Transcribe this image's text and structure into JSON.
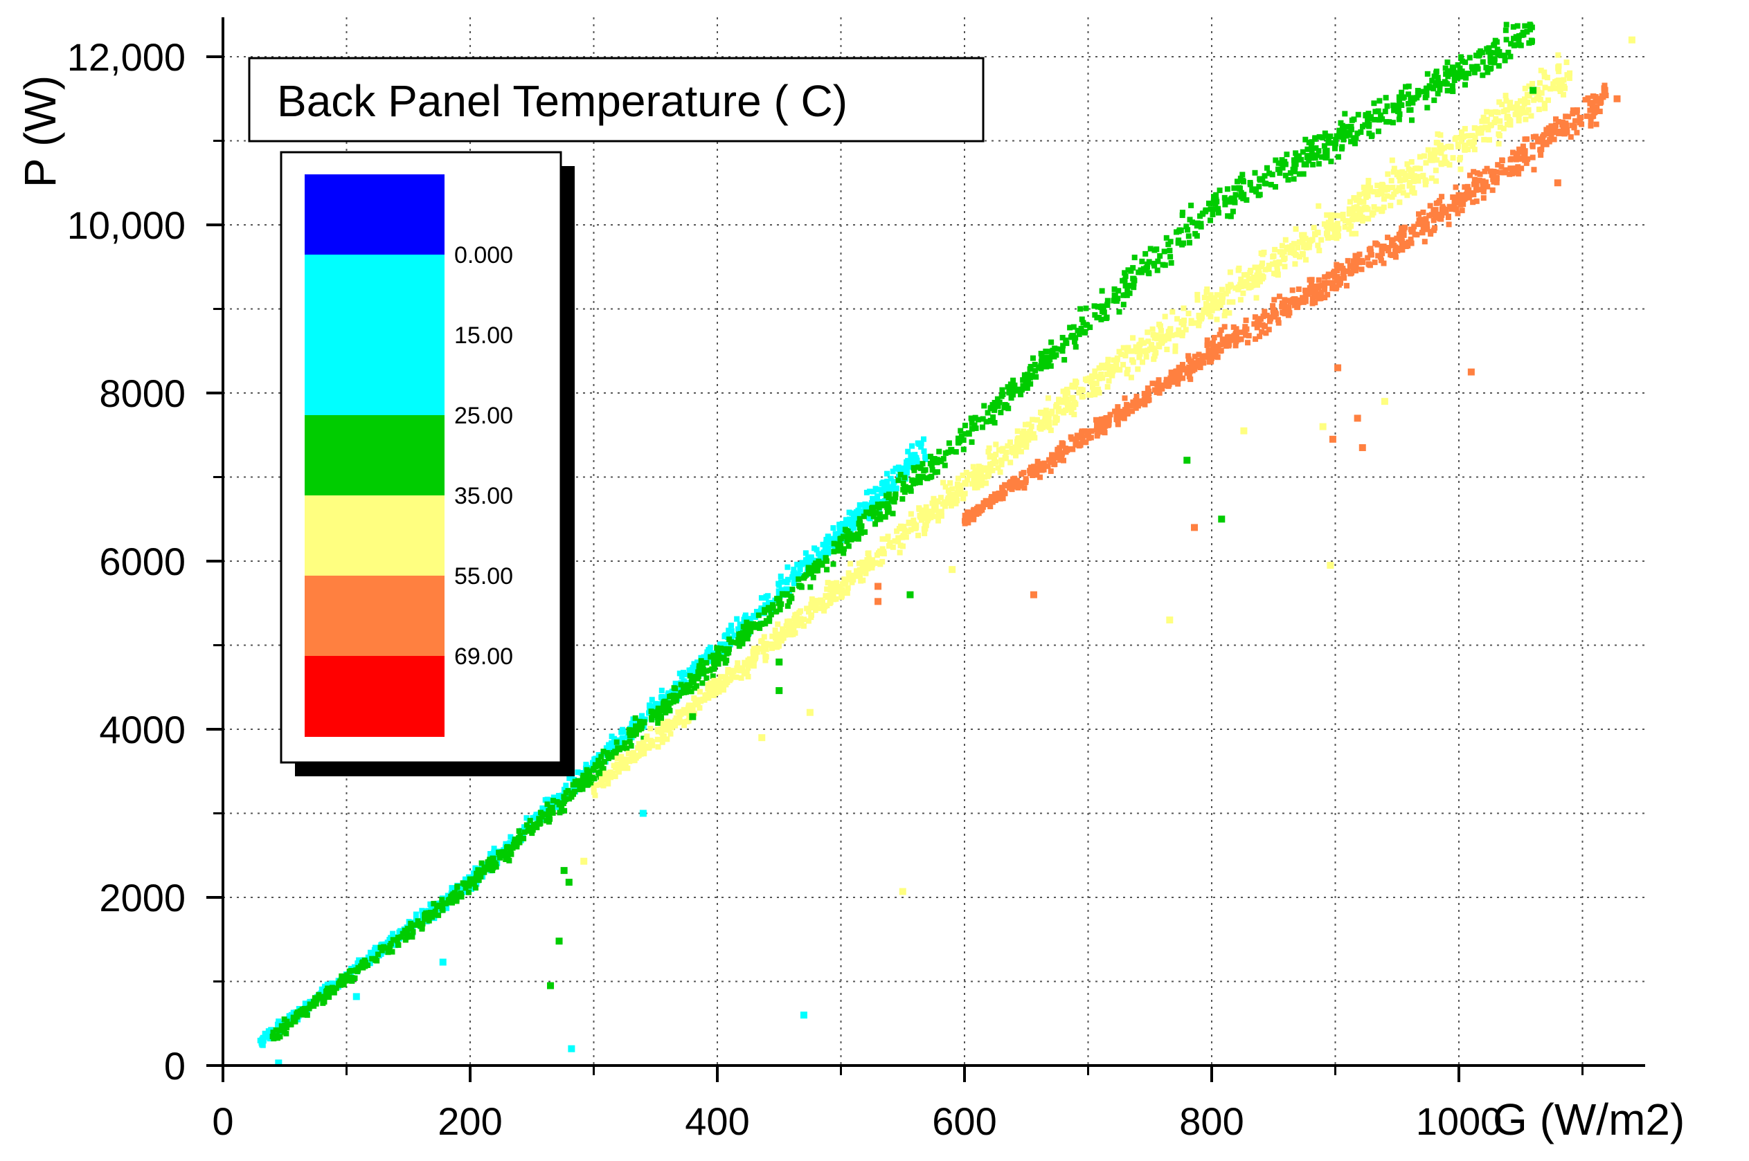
{
  "chart_data": {
    "type": "scatter",
    "title": "Back Panel Temperature ( C)",
    "xlabel": "G (W/m2)",
    "ylabel": "P (W)",
    "xlim": [
      0,
      1150
    ],
    "ylim": [
      0,
      12000
    ],
    "x_ticks": [
      0,
      200,
      400,
      600,
      800,
      1000
    ],
    "x_tick_labels": [
      "0",
      "200",
      "400",
      "600",
      "800",
      "1000"
    ],
    "y_ticks": [
      0,
      2000,
      4000,
      6000,
      8000,
      10000,
      12000
    ],
    "y_tick_labels": [
      "0",
      "2000",
      "4000",
      "6000",
      "8000",
      "10,000",
      "12,000"
    ],
    "grid": true,
    "legend_placement": "top-left",
    "color_scale": {
      "bands": [
        {
          "color": "#0000ff"
        },
        {
          "color": "#00ffff"
        },
        {
          "color": "#00ffff"
        },
        {
          "color": "#00cc00"
        },
        {
          "color": "#ffff80"
        },
        {
          "color": "#ff8040"
        },
        {
          "color": "#ff0000"
        }
      ],
      "labels": [
        "0.000",
        "15.00",
        "25.00",
        "35.00",
        "55.00",
        "69.00"
      ]
    },
    "series": [
      {
        "name": "0.000–15.00 (cyan)",
        "color": "#00ffff",
        "x_range": [
          30,
          570
        ],
        "trend": [
          [
            30,
            280
          ],
          [
            200,
            2180
          ],
          [
            400,
            4950
          ],
          [
            570,
            7350
          ]
        ],
        "spread": 200,
        "count": 900
      },
      {
        "name": "25.00–35.00 (green)",
        "color": "#00cc00",
        "x_range": [
          40,
          1060
        ],
        "trend": [
          [
            40,
            350
          ],
          [
            200,
            2150
          ],
          [
            400,
            4850
          ],
          [
            600,
            7500
          ],
          [
            800,
            10200
          ],
          [
            1060,
            12300
          ]
        ],
        "spread": 260,
        "count": 1400
      },
      {
        "name": "35.00–55.00 (yellow)",
        "color": "#ffff80",
        "x_range": [
          300,
          1090
        ],
        "trend": [
          [
            300,
            3300
          ],
          [
            500,
            5700
          ],
          [
            700,
            8100
          ],
          [
            900,
            10000
          ],
          [
            1090,
            11800
          ]
        ],
        "spread": 320,
        "count": 1400
      },
      {
        "name": "55.00–69.00 (orange)",
        "color": "#ff8040",
        "x_range": [
          600,
          1120
        ],
        "trend": [
          [
            600,
            6500
          ],
          [
            800,
            8500
          ],
          [
            950,
            9800
          ],
          [
            1050,
            10800
          ],
          [
            1120,
            11500
          ]
        ],
        "spread": 260,
        "count": 900
      }
    ],
    "outliers": [
      {
        "x": 45,
        "y": 30,
        "color": "#00ffff"
      },
      {
        "x": 108,
        "y": 820,
        "color": "#00ffff"
      },
      {
        "x": 178,
        "y": 1230,
        "color": "#00ffff"
      },
      {
        "x": 265,
        "y": 950,
        "color": "#00cc00"
      },
      {
        "x": 272,
        "y": 1480,
        "color": "#00cc00"
      },
      {
        "x": 276,
        "y": 2320,
        "color": "#00cc00"
      },
      {
        "x": 280,
        "y": 2180,
        "color": "#00cc00"
      },
      {
        "x": 282,
        "y": 200,
        "color": "#00ffff"
      },
      {
        "x": 292,
        "y": 2430,
        "color": "#ffff80"
      },
      {
        "x": 340,
        "y": 3000,
        "color": "#00ffff"
      },
      {
        "x": 380,
        "y": 4150,
        "color": "#00cc00"
      },
      {
        "x": 436,
        "y": 3900,
        "color": "#ffff80"
      },
      {
        "x": 450,
        "y": 4800,
        "color": "#00cc00"
      },
      {
        "x": 450,
        "y": 4460,
        "color": "#00cc00"
      },
      {
        "x": 470,
        "y": 600,
        "color": "#00ffff"
      },
      {
        "x": 475,
        "y": 4200,
        "color": "#ffff80"
      },
      {
        "x": 530,
        "y": 5700,
        "color": "#ff8040"
      },
      {
        "x": 530,
        "y": 5520,
        "color": "#ff8040"
      },
      {
        "x": 550,
        "y": 2070,
        "color": "#ffff80"
      },
      {
        "x": 556,
        "y": 5600,
        "color": "#00cc00"
      },
      {
        "x": 590,
        "y": 5900,
        "color": "#ffff80"
      },
      {
        "x": 656,
        "y": 5600,
        "color": "#ff8040"
      },
      {
        "x": 766,
        "y": 5300,
        "color": "#ffff80"
      },
      {
        "x": 780,
        "y": 7200,
        "color": "#00cc00"
      },
      {
        "x": 786,
        "y": 6400,
        "color": "#ff8040"
      },
      {
        "x": 808,
        "y": 6500,
        "color": "#00cc00"
      },
      {
        "x": 826,
        "y": 7550,
        "color": "#ffff80"
      },
      {
        "x": 890,
        "y": 7600,
        "color": "#ffff80"
      },
      {
        "x": 896,
        "y": 5950,
        "color": "#ffff80"
      },
      {
        "x": 898,
        "y": 7450,
        "color": "#ff8040"
      },
      {
        "x": 902,
        "y": 8300,
        "color": "#ff8040"
      },
      {
        "x": 918,
        "y": 7700,
        "color": "#ff8040"
      },
      {
        "x": 922,
        "y": 7350,
        "color": "#ff8040"
      },
      {
        "x": 940,
        "y": 7900,
        "color": "#ffff80"
      },
      {
        "x": 1010,
        "y": 8250,
        "color": "#ff8040"
      },
      {
        "x": 1060,
        "y": 11600,
        "color": "#00cc00"
      },
      {
        "x": 1080,
        "y": 10500,
        "color": "#ff8040"
      },
      {
        "x": 1118,
        "y": 11600,
        "color": "#ff8040"
      },
      {
        "x": 1128,
        "y": 11500,
        "color": "#ff8040"
      },
      {
        "x": 1140,
        "y": 12200,
        "color": "#ffff80"
      }
    ]
  }
}
